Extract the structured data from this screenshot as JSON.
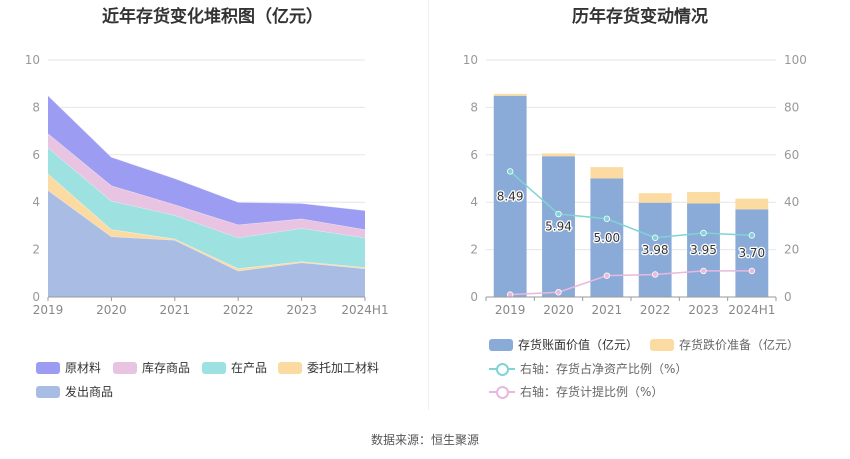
{
  "source_text": "数据来源：恒生聚源",
  "chart_data": [
    {
      "type": "area",
      "stacked": true,
      "title": "近年存货变化堆积图（亿元）",
      "categories": [
        "2019",
        "2020",
        "2021",
        "2022",
        "2023",
        "2024H1"
      ],
      "ylim": [
        0,
        10
      ],
      "yticks": [
        "0",
        "2",
        "4",
        "6",
        "8",
        "10"
      ],
      "grid": true,
      "legend_position": "bottom",
      "series": [
        {
          "name": "发出商品",
          "color": "#a9bde4",
          "values": [
            4.5,
            2.55,
            2.4,
            1.1,
            1.45,
            1.2
          ]
        },
        {
          "name": "委托加工材料",
          "color": "#fcdba3",
          "values": [
            0.7,
            0.3,
            0.05,
            0.1,
            0.05,
            0.05
          ]
        },
        {
          "name": "在产品",
          "color": "#9ee1e1",
          "values": [
            1.1,
            1.2,
            1.0,
            1.3,
            1.4,
            1.25
          ]
        },
        {
          "name": "库存商品",
          "color": "#e9c4e2",
          "values": [
            0.6,
            0.65,
            0.45,
            0.55,
            0.4,
            0.35
          ]
        },
        {
          "name": "原材料",
          "color": "#9c9cf3",
          "values": [
            1.6,
            1.2,
            1.1,
            0.95,
            0.65,
            0.8
          ]
        }
      ],
      "legend_order": [
        "原材料",
        "库存商品",
        "在产品",
        "委托加工材料",
        "发出商品"
      ]
    },
    {
      "type": "bar",
      "title": "历年存货变动情况",
      "categories": [
        "2019",
        "2020",
        "2021",
        "2022",
        "2023",
        "2024H1"
      ],
      "ylim": [
        0,
        10
      ],
      "yticks": [
        "0",
        "2",
        "4",
        "6",
        "8",
        "10"
      ],
      "y2lim": [
        0,
        100
      ],
      "y2ticks": [
        "0",
        "20",
        "40",
        "60",
        "80",
        "100"
      ],
      "grid": true,
      "legend_position": "bottom",
      "bar_series": [
        {
          "name": "存货账面价值（亿元）",
          "color": "#8aaad8",
          "values": [
            8.49,
            5.94,
            5.0,
            3.98,
            3.95,
            3.7
          ],
          "labels": [
            "8.49",
            "5.94",
            "5.00",
            "3.98",
            "3.95",
            "3.70"
          ]
        },
        {
          "name": "存货跌价准备（亿元）",
          "color": "#fcdba3",
          "values": [
            0.08,
            0.12,
            0.48,
            0.4,
            0.48,
            0.45
          ]
        }
      ],
      "line_series": [
        {
          "name": "右轴：存货占净资产比例（%）",
          "color": "#7fd4d4",
          "axis": "right",
          "values": [
            53,
            35,
            33,
            25,
            27,
            26
          ]
        },
        {
          "name": "右轴：存货计提比例（%）",
          "color": "#e9b8dd",
          "axis": "right",
          "values": [
            1,
            2,
            9,
            9.5,
            11,
            11
          ]
        }
      ]
    }
  ]
}
